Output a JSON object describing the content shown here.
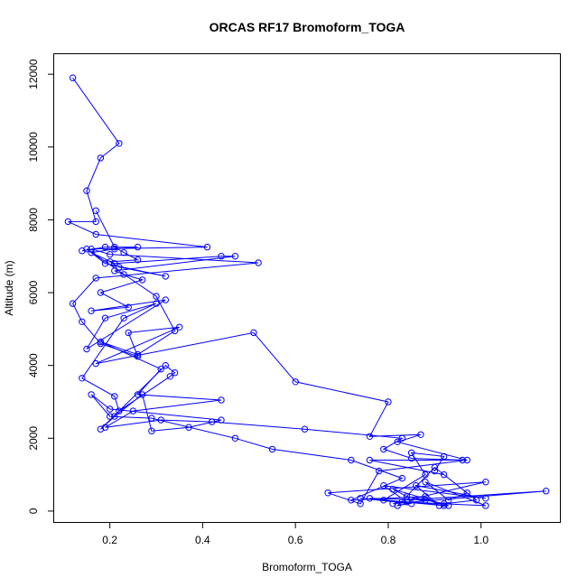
{
  "chart_data": {
    "type": "line",
    "title": "ORCAS RF17 Bromoform_TOGA",
    "xlabel": "Bromoform_TOGA",
    "ylabel": "Altitude (m)",
    "xlim": [
      0.08,
      1.17
    ],
    "ylim": [
      -300,
      12550
    ],
    "xticks": [
      0.2,
      0.4,
      0.6,
      0.8,
      1.0
    ],
    "xtick_labels": [
      "0.2",
      "0.4",
      "0.6",
      "0.8",
      "1.0"
    ],
    "yticks": [
      0,
      2000,
      4000,
      6000,
      8000,
      10000,
      12000
    ],
    "ytick_labels": [
      "0",
      "2000",
      "4000",
      "6000",
      "8000",
      "10000",
      "12000"
    ],
    "grid": false,
    "series_color": "#0000ff",
    "series": [
      {
        "x": [
          0.12,
          0.22,
          0.18,
          0.15,
          0.17,
          0.11,
          0.17,
          0.41,
          0.16,
          0.2,
          0.52,
          0.17,
          0.12,
          0.14,
          0.18,
          0.26,
          0.24,
          0.35,
          0.17,
          0.51,
          0.6,
          0.8,
          0.76,
          0.87,
          0.82,
          0.97,
          0.78,
          0.74,
          0.67,
          1.01,
          0.84,
          1.14,
          0.81
        ],
        "y": [
          11900,
          10100,
          9700,
          8800,
          7950,
          7950,
          7600,
          7250,
          7200,
          7050,
          6820,
          6400,
          5700,
          5200,
          4600,
          4250,
          4900,
          5050,
          4050,
          4900,
          3550,
          3000,
          2050,
          2100,
          1900,
          1400,
          1100,
          200,
          500,
          800,
          300,
          550,
          200
        ]
      },
      {
        "x": [
          0.14,
          0.19,
          0.26,
          0.21,
          0.16,
          0.21,
          0.44,
          0.47,
          0.21,
          0.23,
          0.27,
          0.18,
          0.24,
          0.16,
          0.32,
          0.15,
          0.19,
          0.3,
          0.23,
          0.14,
          0.21,
          0.22,
          0.33,
          0.34,
          0.32,
          0.18,
          0.21,
          0.27,
          0.29,
          0.37,
          0.44,
          0.2,
          0.16,
          0.2,
          0.29,
          0.47,
          0.55,
          0.72,
          0.83,
          0.72,
          0.88,
          0.91,
          0.86,
          1.01,
          0.79,
          0.84,
          0.92,
          0.79,
          0.88,
          0.85,
          0.92,
          0.9
        ],
        "y": [
          7150,
          7250,
          7250,
          7200,
          7100,
          6800,
          7000,
          7000,
          6600,
          6500,
          6350,
          6000,
          5600,
          5500,
          5800,
          4450,
          5300,
          5700,
          5300,
          3650,
          3150,
          2750,
          3700,
          3800,
          4000,
          2250,
          2600,
          3200,
          2200,
          2300,
          2500,
          2800,
          3200,
          2600,
          2550,
          2000,
          1700,
          1400,
          900,
          300,
          400,
          150,
          700,
          350,
          700,
          250,
          150,
          300,
          1000,
          1600,
          1500,
          1100
        ]
      },
      {
        "x": [
          0.17,
          0.21,
          0.23,
          0.26,
          0.2,
          0.22,
          0.32,
          0.19,
          0.15,
          0.3,
          0.34,
          0.26,
          0.18,
          0.31,
          0.26,
          0.44,
          0.25,
          0.19,
          0.31,
          0.42,
          0.62,
          0.83,
          0.79,
          0.85,
          0.96,
          0.76,
          0.92,
          0.97,
          0.93,
          0.88,
          1.01,
          0.83,
          0.76,
          0.88,
          0.82,
          0.9,
          0.99,
          0.92,
          0.84,
          0.81,
          0.93,
          0.74,
          0.85
        ],
        "y": [
          8250,
          7250,
          7100,
          6900,
          6850,
          6700,
          6450,
          6800,
          7200,
          5900,
          4950,
          4300,
          4650,
          3900,
          3200,
          3050,
          2750,
          2300,
          2500,
          2450,
          2250,
          2000,
          1700,
          1450,
          1400,
          1400,
          1000,
          500,
          300,
          800,
          150,
          250,
          350,
          300,
          150,
          1200,
          300,
          200,
          400,
          600,
          150,
          350,
          200
        ]
      }
    ]
  }
}
